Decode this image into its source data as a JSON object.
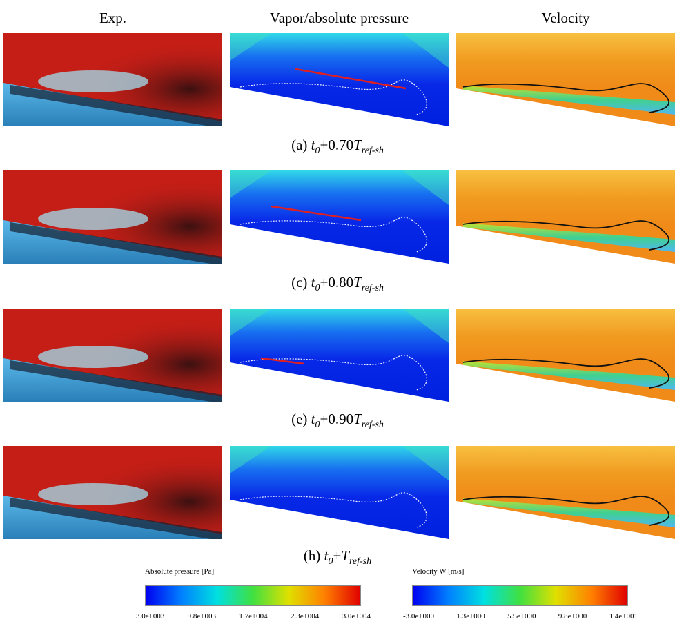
{
  "columns": [
    "Exp.",
    "Vapor/absolute pressure",
    "Velocity"
  ],
  "rows": [
    {
      "caption": [
        "(a) ",
        "t",
        "0",
        "+0.70",
        "T",
        "ref-sh"
      ]
    },
    {
      "caption": [
        "(c) ",
        "t",
        "0",
        "+0.80",
        "T",
        "ref-sh"
      ]
    },
    {
      "caption": [
        "(e) ",
        "t",
        "0",
        "+0.90",
        "T",
        "ref-sh"
      ]
    },
    {
      "caption": [
        "(h) ",
        "t",
        "0",
        "+",
        "T",
        "ref-sh"
      ]
    }
  ],
  "colorbars": [
    {
      "title": "Absolute pressure [Pa]",
      "ticks": [
        "3.0e+003",
        "9.8e+003",
        "1.7e+004",
        "2.3e+004",
        "3.0e+004"
      ]
    },
    {
      "title": "Velocity W [m/s]",
      "ticks": [
        "-3.0e+000",
        "1.3e+000",
        "5.5e+000",
        "9.8e+000",
        "1.4e+001"
      ]
    }
  ]
}
